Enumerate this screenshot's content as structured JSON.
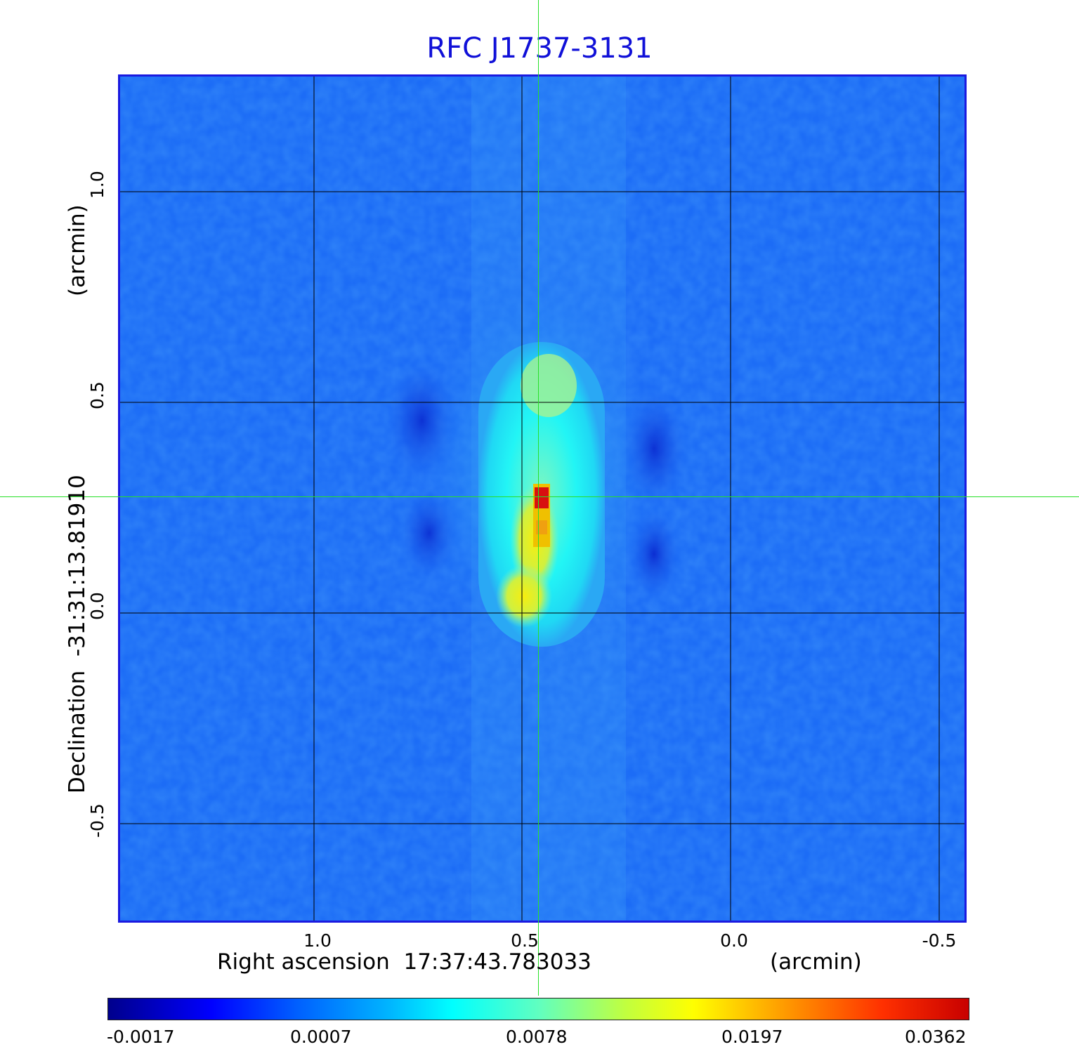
{
  "title": "RFC J1737-3131",
  "image": {
    "description_colormap": "jet",
    "colors": {
      "background": "#1c6cf6",
      "deep": "#0c32d8",
      "cyan": "#00f0ff",
      "yellow": "#f4f000",
      "red": "#d81010"
    }
  },
  "axes": {
    "x_label": "Right ascension  17:37:43.783033",
    "x_unit": "(arcmin)",
    "y_label": "Declination  -31:31:13.81910",
    "y_unit": "(arcmin)",
    "x_ticks": [
      "1.0",
      "0.5",
      "0.0",
      "-0.5"
    ],
    "y_ticks": [
      "1.0",
      "0.5",
      "0.0",
      "-0.5"
    ]
  },
  "colorbar": {
    "ticks": [
      "-0.0017",
      "0.0007",
      "0.0078",
      "0.0197",
      "0.0362"
    ]
  }
}
